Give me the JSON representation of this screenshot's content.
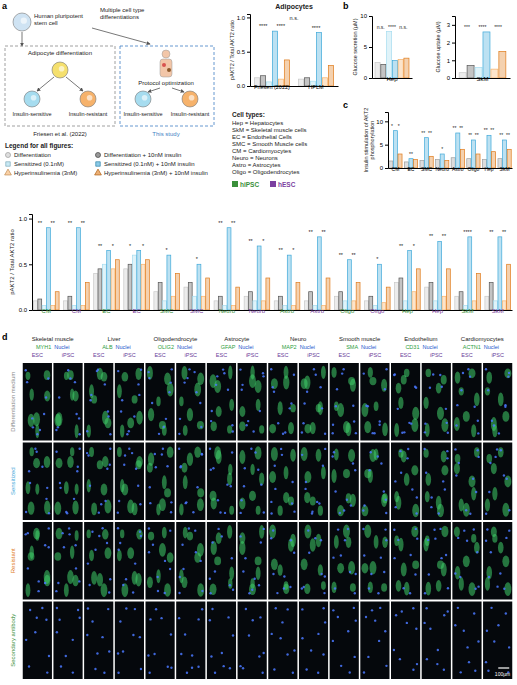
{
  "chart_data": [
    {
      "type": "bar",
      "title": "Adipocytes",
      "y_label": "pAKT2 / Total AKT2 ratio",
      "categories": [
        "Friesen (2022)",
        "HPLM"
      ],
      "ylim": [
        0,
        1.05
      ],
      "yticks": [
        {
          "value": 0,
          "label": "0.0"
        },
        {
          "value": 0.5,
          "label": "0.5"
        },
        {
          "value": 1,
          "label": "1.0"
        }
      ],
      "series": [
        {
          "color": "#c8c8c8",
          "values": [
            0.12,
            0.1
          ]
        },
        {
          "color": "#555555",
          "values": [
            0.15,
            0.12
          ]
        },
        {
          "color": "#a6dcef",
          "values": [
            0.06,
            0.07
          ]
        },
        {
          "color": "#3fa9d9",
          "values": [
            0.8,
            0.78
          ]
        },
        {
          "color": "#f6b26b",
          "values": [
            0.1,
            0.12
          ]
        },
        {
          "color": "#e07b1a",
          "values": [
            0.38,
            0.3
          ]
        }
      ],
      "significance": [
        [
          "****",
          "****"
        ],
        [
          "****"
        ]
      ],
      "group_comparison": "n.s."
    },
    {
      "type": "bar",
      "y_label": "Glucose secretion (µM)",
      "categories": [
        "Hep"
      ],
      "ylim": [
        0,
        10
      ],
      "yticks": [
        0,
        5,
        10
      ],
      "series": [
        {
          "color": "#c8c8c8",
          "values": [
            2.5
          ]
        },
        {
          "color": "#555555",
          "values": [
            2.2
          ]
        },
        {
          "color": "#a6dcef",
          "values": [
            7.5
          ]
        },
        {
          "color": "#3fa9d9",
          "values": [
            2.8
          ]
        },
        {
          "color": "#f6b26b",
          "values": [
            3.0
          ]
        },
        {
          "color": "#e07b1a",
          "values": [
            3.2
          ]
        }
      ],
      "significance": [
        [
          "n.s.",
          "****",
          "n.s."
        ]
      ]
    },
    {
      "type": "bar",
      "y_label": "Glucose uptake (µM)",
      "categories": [
        "SkM"
      ],
      "ylim": [
        0,
        3.5
      ],
      "yticks": [
        0,
        1,
        2,
        3
      ],
      "series": [
        {
          "color": "#c8c8c8",
          "values": [
            0.3
          ]
        },
        {
          "color": "#555555",
          "values": [
            0.7
          ]
        },
        {
          "color": "#a6dcef",
          "values": [
            0.6
          ]
        },
        {
          "color": "#3fa9d9",
          "values": [
            2.6
          ]
        },
        {
          "color": "#f6b26b",
          "values": [
            0.5
          ]
        },
        {
          "color": "#e07b1a",
          "values": [
            1.5
          ]
        }
      ],
      "significance": [
        [
          "***",
          "****",
          "****"
        ]
      ]
    },
    {
      "type": "bar",
      "y_label": "Insulin stimulation of AKT2 phosphorylation",
      "categories": [
        "CM",
        "EC",
        "SMC",
        "Neuro",
        "Astro",
        "Oligo",
        "Hep",
        "SkM"
      ],
      "ylim": [
        0,
        12
      ],
      "yticks": [
        0,
        5,
        10
      ],
      "series": [
        {
          "color": "#9e9e9e",
          "values": [
            1.5,
            1.3,
            1.6,
            1.8,
            2.2,
            2.0,
            1.8,
            2.0
          ]
        },
        {
          "color": "#3fa9d9",
          "values": [
            8.0,
            2.0,
            6.5,
            3.0,
            7.5,
            6.0,
            7.0,
            6.0
          ]
        },
        {
          "color": "#e07b1a",
          "values": [
            3.0,
            1.8,
            2.5,
            1.6,
            4.0,
            3.0,
            3.5,
            4.0
          ]
        }
      ],
      "significance": [
        [
          "*",
          "*"
        ],
        [
          "**"
        ],
        [
          "**",
          "**"
        ],
        [
          "*"
        ],
        [
          "**",
          "**"
        ],
        [
          "**",
          "**"
        ],
        [
          "**",
          "**"
        ],
        [
          "**",
          "**"
        ]
      ]
    },
    {
      "type": "bar",
      "y_label": "pAKT2 / Total AKT2 ratio",
      "categories": [
        "CM",
        "CM",
        "EC",
        "EC",
        "SMC",
        "SMC",
        "Neuro",
        "Neuro",
        "Astro",
        "Astro",
        "Oligo",
        "Oligo",
        "Hep",
        "Hep",
        "SkM",
        "SkM"
      ],
      "category_lines": [
        "hiPSC",
        "hESC",
        "hiPSC",
        "hESC",
        "hiPSC",
        "hESC",
        "hiPSC",
        "hESC",
        "hiPSC",
        "hESC",
        "hiPSC",
        "hESC",
        "hiPSC",
        "hESC",
        "hiPSC",
        "hESC"
      ],
      "ylim": [
        0,
        1.05
      ],
      "yticks": [
        {
          "value": 0,
          "label": "0.0"
        },
        {
          "value": 0.5,
          "label": "0.5"
        },
        {
          "value": 1,
          "label": "1.0"
        }
      ],
      "series": [
        {
          "color": "#c8c8c8",
          "values": [
            0.1,
            0.1,
            0.4,
            0.45,
            0.2,
            0.25,
            0.1,
            0.15,
            0.1,
            0.1,
            0.15,
            0.1,
            0.3,
            0.25,
            0.15,
            0.15
          ]
        },
        {
          "color": "#555555",
          "values": [
            0.12,
            0.15,
            0.45,
            0.5,
            0.3,
            0.3,
            0.15,
            0.2,
            0.15,
            0.2,
            0.2,
            0.15,
            0.35,
            0.3,
            0.2,
            0.3
          ]
        },
        {
          "color": "#a6dcef",
          "values": [
            0.05,
            0.05,
            0.5,
            0.6,
            0.1,
            0.15,
            0.05,
            0.1,
            0.05,
            0.05,
            0.1,
            0.05,
            0.1,
            0.1,
            0.05,
            0.1
          ]
        },
        {
          "color": "#3fa9d9",
          "values": [
            0.9,
            0.9,
            0.65,
            0.65,
            0.6,
            0.5,
            0.9,
            0.7,
            0.6,
            0.8,
            0.55,
            0.5,
            0.65,
            0.75,
            0.8,
            0.8
          ]
        },
        {
          "color": "#f6b26b",
          "values": [
            0.05,
            0.05,
            0.45,
            0.5,
            0.15,
            0.15,
            0.05,
            0.1,
            0.05,
            0.05,
            0.1,
            0.08,
            0.2,
            0.15,
            0.1,
            0.1
          ]
        },
        {
          "color": "#e07b1a",
          "values": [
            0.2,
            0.3,
            0.55,
            0.55,
            0.4,
            0.35,
            0.25,
            0.35,
            0.3,
            0.35,
            0.3,
            0.25,
            0.45,
            0.45,
            0.4,
            0.5
          ]
        }
      ],
      "significance": [
        [
          "**",
          "**"
        ],
        [
          "**",
          "**"
        ],
        [
          "**",
          "*"
        ],
        [
          "*",
          "*"
        ],
        [
          "*"
        ],
        [
          "*"
        ],
        [
          "**",
          "**"
        ],
        [
          "**",
          "*"
        ],
        [
          "**",
          "*"
        ],
        [
          "**",
          "**"
        ],
        [
          "**",
          "**"
        ],
        [
          "*"
        ],
        [
          "**",
          "*"
        ],
        [
          "**",
          "**"
        ],
        [
          "****"
        ],
        [
          "**",
          "**"
        ]
      ]
    }
  ],
  "figure": {
    "panel_labels": [
      "a",
      "b",
      "c",
      "d"
    ],
    "schematic": {
      "stem_cell": "Human pluripotent stem cell",
      "multiple": "Multiple cell type differentiations",
      "adipocyte": "Adipocyte differentiation",
      "sensitive": "Insulin-sensitive",
      "resistant": "Insulin-resistant",
      "friesen": "Friesen et al. (2022)",
      "protocol": "Protocol optimization",
      "this_study": "This study"
    },
    "legend_title": "Legend for all figures:",
    "legend": [
      {
        "name": "Differentiation",
        "color": "#c8c8c8",
        "marker": "circle"
      },
      {
        "name": "Sensitized (0.1nM)",
        "color": "#a6dcef",
        "marker": "square"
      },
      {
        "name": "Hyperinsulinemia (3nM)",
        "color": "#f6b26b",
        "marker": "triangle"
      },
      {
        "name": "Differentiation + 10nM insulin",
        "color": "#555555",
        "marker": "circle"
      },
      {
        "name": "Sensitized (0.1nM) + 10nM insulin",
        "color": "#3fa9d9",
        "marker": "square"
      },
      {
        "name": "Hyperinsulinemia (3nM) + 10nM insulin",
        "color": "#e07b1a",
        "marker": "triangle"
      }
    ],
    "cell_types_title": "Cell types:",
    "cell_types": [
      "Hep = Hepatocytes",
      "SkM = Skeletal muscle cells",
      "EC = Endothelial Cells",
      "SMC = Smooth Muscle cells",
      "CM = Cardiomyocytes",
      "Neuro = Neurons",
      "Astro = Astrocytes",
      "Oligo = Oligodendrocytes"
    ],
    "cell_lines": [
      {
        "name": "hiPSC",
        "color": "#3a8f3a"
      },
      {
        "name": "hESC",
        "color": "#7b3fa0"
      }
    ],
    "panel_d": {
      "columns": [
        {
          "title": "Skeletal muscle",
          "stain": "MYH1"
        },
        {
          "title": "Liver",
          "stain": "ALB"
        },
        {
          "title": "Oligodendrocyte",
          "stain": "OLIG2"
        },
        {
          "title": "Astrocyte",
          "stain": "GFAP"
        },
        {
          "title": "Neuro",
          "stain": "MAP2"
        },
        {
          "title": "Smooth muscle",
          "stain": "SMA"
        },
        {
          "title": "Endothelium",
          "stain": "CD31"
        },
        {
          "title": "Cardiomyocytes",
          "stain": "ACTN1"
        }
      ],
      "counterstain": "Nuclei",
      "lines": [
        "ESC",
        "iPSC"
      ],
      "rows": [
        {
          "label": "Differentiation medium",
          "color": "#8a8a8a"
        },
        {
          "label": "Sensitized",
          "color": "#3fa9d9"
        },
        {
          "label": "Resistant",
          "color": "#e07b1a"
        },
        {
          "label": "Secondary antibody",
          "color": "#3a8f3a"
        }
      ],
      "scale_bar": "100µm"
    }
  }
}
